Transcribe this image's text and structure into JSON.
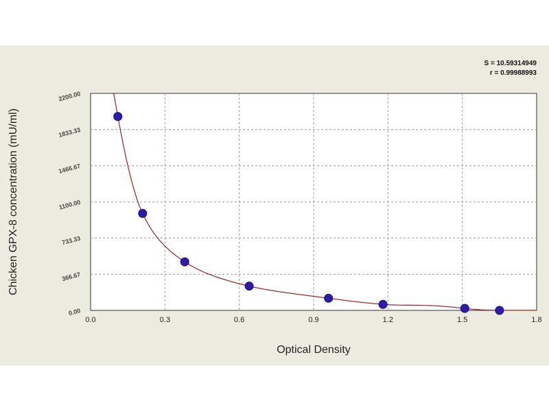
{
  "chart_data": {
    "type": "scatter",
    "xlabel": "Optical Density",
    "ylabel": "Chicken GPX-8 concentration (mU/ml)",
    "xlim": [
      0.0,
      1.8
    ],
    "ylim": [
      0,
      2200
    ],
    "x_ticks": [
      {
        "value": 0.0,
        "label": "0.0"
      },
      {
        "value": 0.3,
        "label": "0.3"
      },
      {
        "value": 0.6,
        "label": "0.6"
      },
      {
        "value": 0.9,
        "label": "0.9"
      },
      {
        "value": 1.2,
        "label": "1.2"
      },
      {
        "value": 1.5,
        "label": "1.5"
      },
      {
        "value": 1.8,
        "label": "1.8"
      }
    ],
    "y_ticks": [
      {
        "value": 0,
        "label": "0.00"
      },
      {
        "value": 366.67,
        "label": "366.67"
      },
      {
        "value": 733.33,
        "label": "733.33"
      },
      {
        "value": 1100,
        "label": "1100.00"
      },
      {
        "value": 1466.67,
        "label": "1466.67"
      },
      {
        "value": 1833.33,
        "label": "1833.33"
      },
      {
        "value": 2200,
        "label": "2200.00"
      }
    ],
    "grid": true,
    "stats": [
      "S = 10.59314949",
      "r = 0.99988993"
    ],
    "series": [
      {
        "points": [
          {
            "x": 0.11,
            "y": 1966
          },
          {
            "x": 0.21,
            "y": 983
          },
          {
            "x": 0.38,
            "y": 492
          },
          {
            "x": 0.64,
            "y": 246
          },
          {
            "x": 0.96,
            "y": 123
          },
          {
            "x": 1.18,
            "y": 61
          },
          {
            "x": 1.51,
            "y": 20
          },
          {
            "x": 1.65,
            "y": 0
          }
        ],
        "point_color": "#2b1bb0",
        "curve_color": "#a02020"
      }
    ]
  }
}
